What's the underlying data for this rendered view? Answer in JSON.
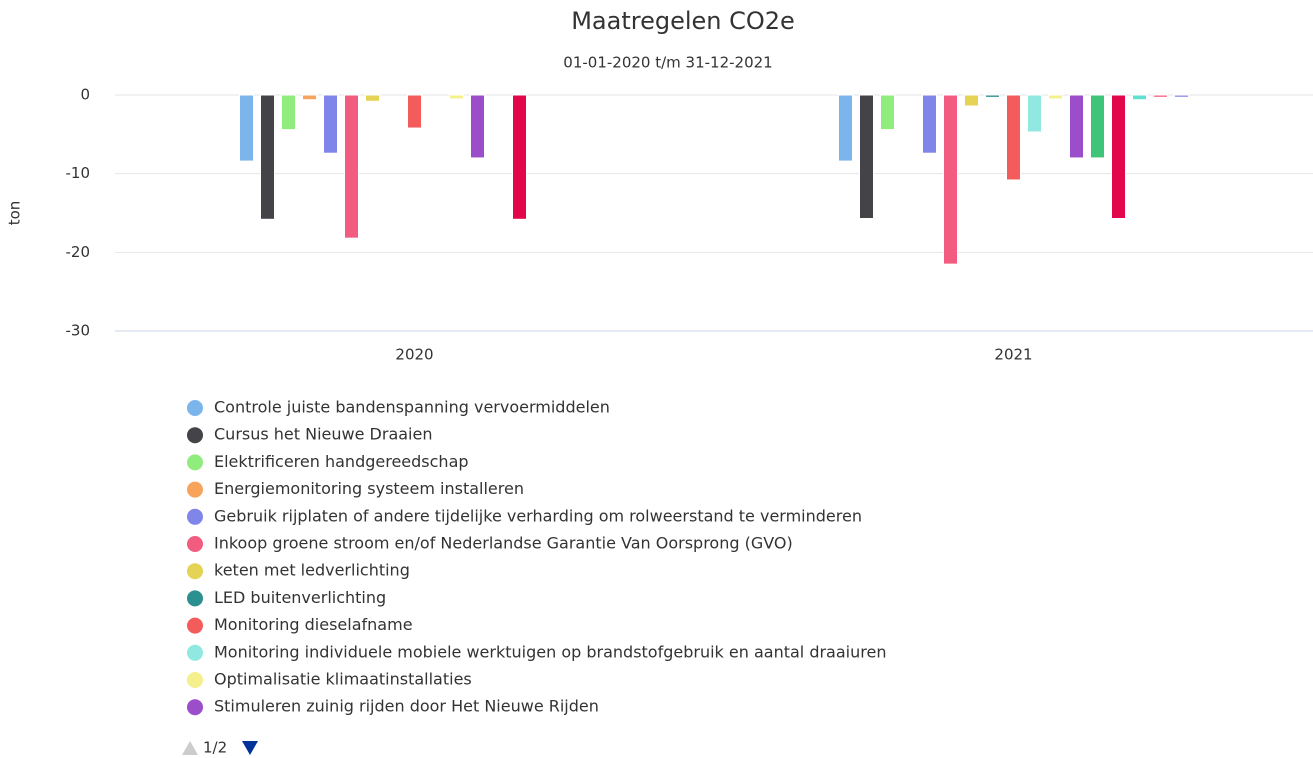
{
  "chart_data": {
    "type": "bar",
    "title": "Maatregelen CO2e",
    "subtitle": "01-01-2020 t/m 31-12-2021",
    "y_label": "ton",
    "categories": [
      "2020",
      "2021"
    ],
    "ylim": [
      -30,
      0
    ],
    "yticks": [
      0,
      -10,
      -20,
      -30
    ],
    "grid": true,
    "legend_page": "1/2",
    "series": [
      {
        "name": "Controle juiste bandenspanning vervoermiddelen",
        "color": "#7cb5ec",
        "values": [
          -8.4,
          -8.4
        ]
      },
      {
        "name": "Cursus het Nieuwe Draaien",
        "color": "#434348",
        "values": [
          -15.8,
          -15.7
        ]
      },
      {
        "name": "Elektrificeren handgereedschap",
        "color": "#90ed7d",
        "values": [
          -4.4,
          -4.4
        ]
      },
      {
        "name": "Energiemonitoring systeem installeren",
        "color": "#f7a35c",
        "values": [
          -0.6,
          0
        ]
      },
      {
        "name": "Gebruik rijplaten of andere tijdelijke verharding om rolweerstand te verminderen",
        "color": "#8085e9",
        "values": [
          -7.4,
          -7.4
        ]
      },
      {
        "name": "Inkoop groene stroom en/of Nederlandse Garantie Van Oorsprong (GVO)",
        "color": "#f15c80",
        "values": [
          -18.2,
          -21.5
        ]
      },
      {
        "name": "keten met ledverlichting",
        "color": "#e4d354",
        "values": [
          -0.8,
          -1.4
        ]
      },
      {
        "name": "LED buitenverlichting",
        "color": "#2b908f",
        "values": [
          0,
          -0.3
        ]
      },
      {
        "name": "Monitoring dieselafname",
        "color": "#f45b5b",
        "values": [
          -4.2,
          -10.8
        ]
      },
      {
        "name": "Monitoring individuele mobiele werktuigen op brandstofgebruik en aantal draaiuren",
        "color": "#91e8e1",
        "values": [
          0,
          -4.7
        ]
      },
      {
        "name": "Optimalisatie klimaatinstallaties",
        "color": "#f5ef8c",
        "values": [
          -0.5,
          -0.5
        ]
      },
      {
        "name": "Stimuleren zuinig rijden door Het Nieuwe Rijden",
        "color": "#9b4dca",
        "values": [
          -8.0,
          -8.0
        ]
      },
      {
        "color": "#3fc57a",
        "values": [
          0,
          -8.0
        ]
      },
      {
        "color": "#e2064a",
        "values": [
          -15.8,
          -15.7
        ]
      },
      {
        "color": "#5fe0d1",
        "values": [
          0,
          -0.6
        ]
      },
      {
        "color": "#f66a89",
        "values": [
          0,
          -0.3
        ]
      },
      {
        "color": "#8c8fee",
        "values": [
          0,
          -0.3
        ]
      }
    ]
  }
}
